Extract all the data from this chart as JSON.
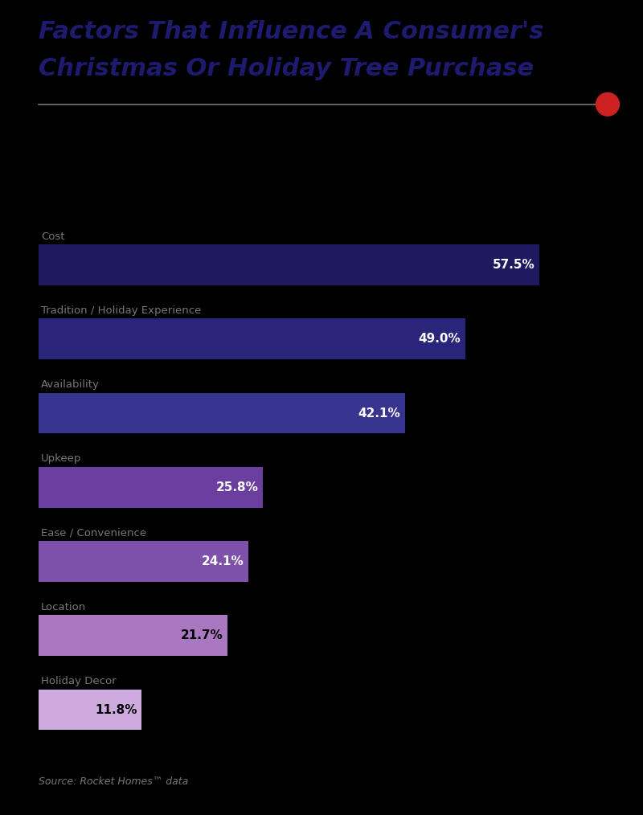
{
  "title_line1": "Factors That Influence A Consumer's",
  "title_line2": "Christmas Or Holiday Tree Purchase",
  "categories": [
    "Cost",
    "Tradition / Holiday Experience",
    "Availability",
    "Upkeep",
    "Ease / Convenience",
    "Location",
    "Holiday Decor"
  ],
  "values": [
    57.5,
    49.0,
    42.1,
    25.8,
    24.1,
    21.7,
    11.8
  ],
  "bar_colors": [
    "#1e1a5f",
    "#28257a",
    "#373490",
    "#6b3fa0",
    "#7d50aa",
    "#a978c0",
    "#ceaade"
  ],
  "label_colors": [
    "#ffffff",
    "#ffffff",
    "#ffffff",
    "#ffffff",
    "#ffffff",
    "#000000",
    "#000000"
  ],
  "source_text": "Source: Rocket Homes™ data",
  "background_color": "#000000",
  "title_color": "#1e1a6e",
  "category_color": "#777777",
  "separator_color": "#777777",
  "dot_color": "#cc2222",
  "xlim": [
    0,
    65
  ]
}
